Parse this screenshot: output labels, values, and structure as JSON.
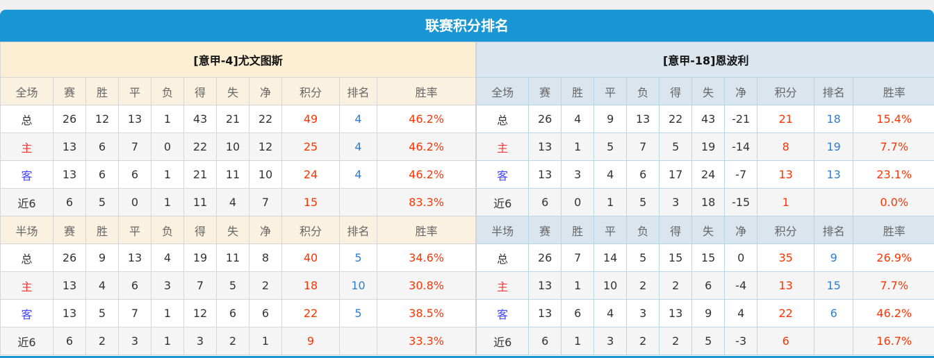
{
  "title": "联赛积分排名",
  "columns_full": [
    "全场",
    "赛",
    "胜",
    "平",
    "负",
    "得",
    "失",
    "净",
    "积分",
    "排名",
    "胜率"
  ],
  "columns_half": [
    "半场",
    "赛",
    "胜",
    "平",
    "负",
    "得",
    "失",
    "净",
    "积分",
    "排名",
    "胜率"
  ],
  "teams": [
    {
      "name": "[意甲-4]尤文图斯",
      "full": [
        [
          "总",
          "26",
          "12",
          "13",
          "1",
          "43",
          "21",
          "22",
          "49",
          "4",
          "46.2%"
        ],
        [
          "主",
          "13",
          "6",
          "7",
          "0",
          "22",
          "10",
          "12",
          "25",
          "4",
          "46.2%"
        ],
        [
          "客",
          "13",
          "6",
          "6",
          "1",
          "21",
          "11",
          "10",
          "24",
          "4",
          "46.2%"
        ],
        [
          "近6",
          "6",
          "5",
          "0",
          "1",
          "11",
          "4",
          "7",
          "15",
          "",
          "83.3%"
        ]
      ],
      "half": [
        [
          "总",
          "26",
          "9",
          "13",
          "4",
          "19",
          "11",
          "8",
          "40",
          "5",
          "34.6%"
        ],
        [
          "主",
          "13",
          "4",
          "6",
          "3",
          "7",
          "5",
          "2",
          "18",
          "10",
          "30.8%"
        ],
        [
          "客",
          "13",
          "5",
          "7",
          "1",
          "12",
          "6",
          "6",
          "22",
          "5",
          "38.5%"
        ],
        [
          "近6",
          "6",
          "2",
          "3",
          "1",
          "3",
          "2",
          "1",
          "9",
          "",
          "33.3%"
        ]
      ]
    },
    {
      "name": "[意甲-18]恩波利",
      "full": [
        [
          "总",
          "26",
          "4",
          "9",
          "13",
          "22",
          "43",
          "-21",
          "21",
          "18",
          "15.4%"
        ],
        [
          "主",
          "13",
          "1",
          "5",
          "7",
          "5",
          "19",
          "-14",
          "8",
          "19",
          "7.7%"
        ],
        [
          "客",
          "13",
          "3",
          "4",
          "6",
          "17",
          "24",
          "-7",
          "13",
          "13",
          "23.1%"
        ],
        [
          "近6",
          "6",
          "0",
          "1",
          "5",
          "3",
          "18",
          "-15",
          "1",
          "",
          "0.0%"
        ]
      ],
      "half": [
        [
          "总",
          "26",
          "7",
          "14",
          "5",
          "15",
          "15",
          "0",
          "35",
          "9",
          "26.9%"
        ],
        [
          "主",
          "13",
          "1",
          "10",
          "2",
          "2",
          "6",
          "-4",
          "13",
          "15",
          "7.7%"
        ],
        [
          "客",
          "13",
          "6",
          "4",
          "3",
          "13",
          "9",
          "4",
          "22",
          "6",
          "46.2%"
        ],
        [
          "近6",
          "6",
          "1",
          "3",
          "2",
          "2",
          "5",
          "-3",
          "6",
          "",
          "16.7%"
        ]
      ]
    }
  ],
  "colors": {
    "header": "#1a96d4",
    "points": "#ff3300",
    "rank": "#2a7fd4",
    "home": "#ff3333",
    "away": "#4444ff"
  }
}
